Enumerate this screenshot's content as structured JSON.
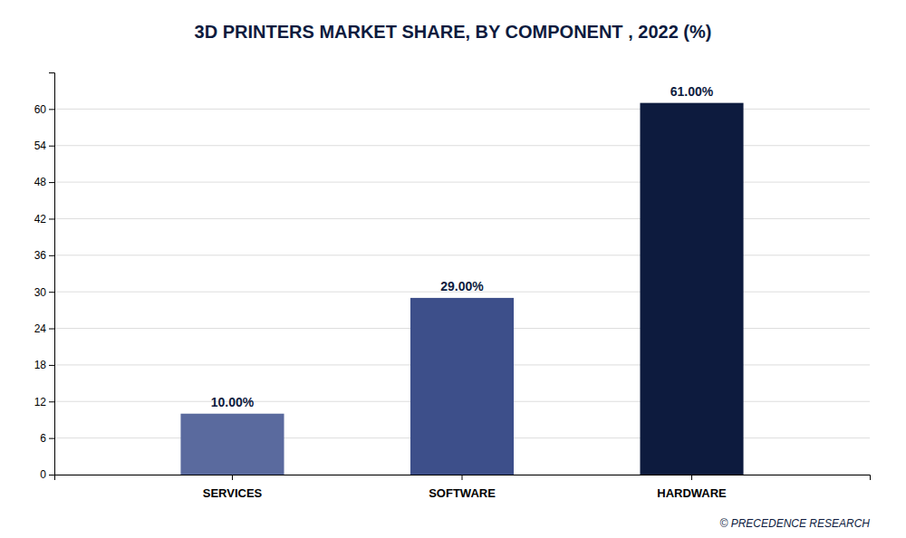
{
  "chart_data": {
    "type": "bar",
    "title": "3D PRINTERS MARKET SHARE, BY COMPONENT , 2022 (%)",
    "categories": [
      "SERVICES",
      "SOFTWARE",
      "HARDWARE"
    ],
    "values": [
      10.0,
      29.0,
      61.0
    ],
    "value_labels": [
      "10.00%",
      "29.00%",
      "61.00%"
    ],
    "colors": [
      "#5a6a9e",
      "#3d4f8a",
      "#0d1b3e"
    ],
    "ylim": [
      0,
      66
    ],
    "yticks": [
      0,
      6,
      12,
      18,
      24,
      30,
      36,
      42,
      48,
      54,
      60
    ],
    "grid": true,
    "data_labels": true,
    "annotations": [
      "© PRECEDENCE RESEARCH"
    ]
  }
}
